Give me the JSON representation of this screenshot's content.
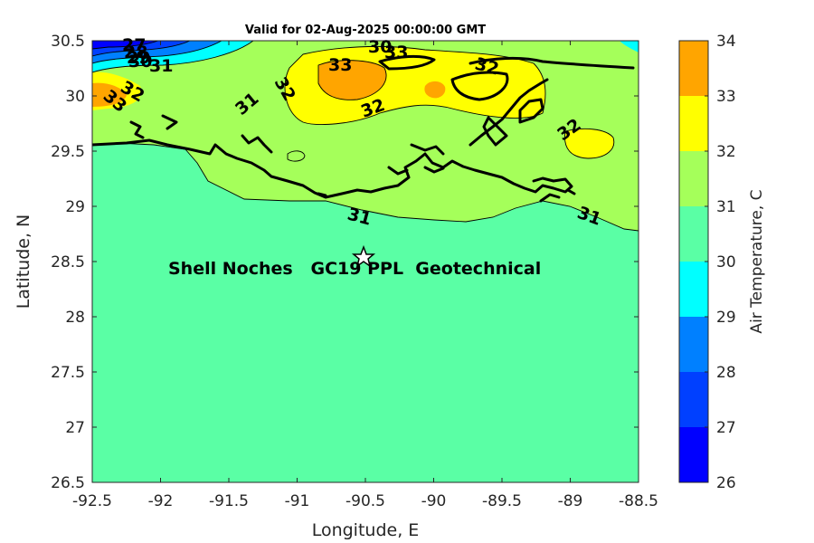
{
  "title": "Valid for 02-Aug-2025 00:00:00 GMT",
  "xlabel": "Longitude, E",
  "ylabel": "Latitude, N",
  "colorbar_label": "Air Temperature, C",
  "x_ticks": [
    "-92.5",
    "-92",
    "-91.5",
    "-91",
    "-90.5",
    "-90",
    "-89.5",
    "-89",
    "-88.5"
  ],
  "y_ticks": [
    "30.5",
    "30",
    "29.5",
    "29",
    "28.5",
    "28",
    "27.5",
    "27",
    "26.5"
  ],
  "colorbar_ticks": [
    "34",
    "33",
    "32",
    "31",
    "30",
    "29",
    "28",
    "27",
    "26"
  ],
  "annotation": "Shell Noches   GC19 PPL  Geotechnical",
  "contour_labels": [
    "27",
    "28",
    "29",
    "30",
    "30",
    "31",
    "32",
    "33",
    "33",
    "32",
    "31",
    "32",
    "32",
    "33",
    "32",
    "31",
    "31"
  ],
  "colors": {
    "c26": "#0000ff",
    "c27": "#0040ff",
    "c28": "#0080ff",
    "c29": "#00ffff",
    "c30": "#5affa5",
    "c31": "#a5ff5a",
    "c32": "#ffff00",
    "c33": "#ffa500",
    "c34": "#ff5a00",
    "coast": "#000000"
  },
  "chart_data": {
    "type": "heatmap",
    "title": "Valid for 02-Aug-2025 00:00:00 GMT",
    "xlabel": "Longitude, E",
    "ylabel": "Latitude, N",
    "xlim": [
      -92.5,
      -88.5
    ],
    "ylim": [
      26.5,
      30.5
    ],
    "variable": "Air Temperature, C",
    "color_levels": [
      26,
      27,
      28,
      29,
      30,
      31,
      32,
      33,
      34
    ],
    "contour_levels": [
      27,
      28,
      29,
      30,
      31,
      32,
      33
    ],
    "marker": {
      "symbol": "star",
      "lon": -90.53,
      "lat": 28.55
    },
    "annotation": "Shell Noches   GC19 PPL  Geotechnical",
    "grid": false
  }
}
